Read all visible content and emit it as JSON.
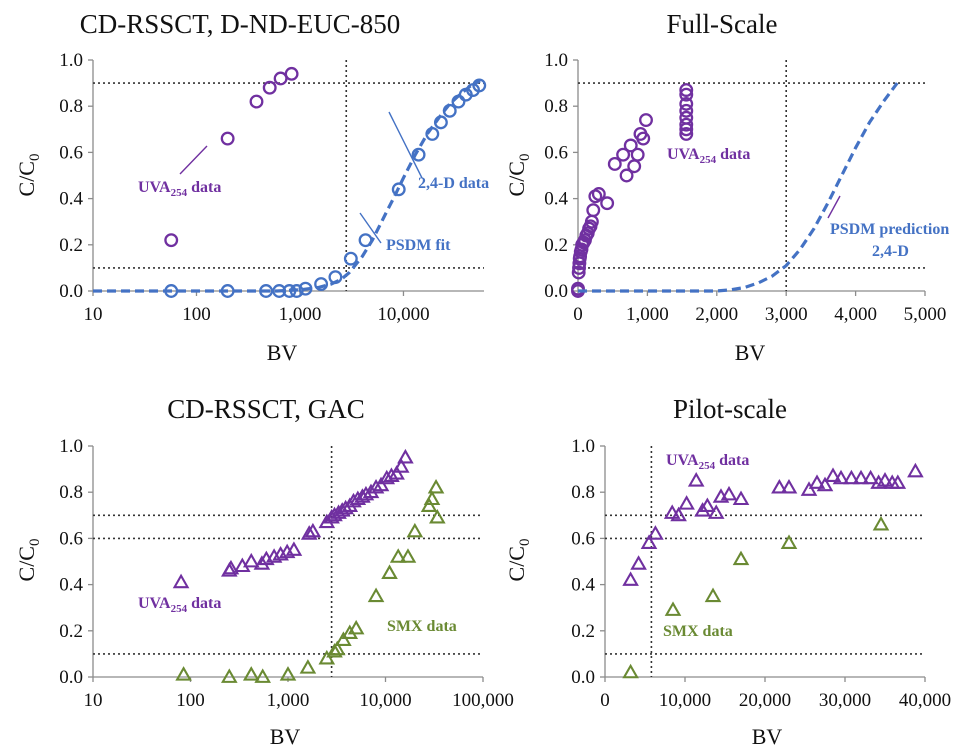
{
  "colors": {
    "purple": "#7030a0",
    "blue": "#4472c4",
    "green": "#6a8a33",
    "axis": "#8c8c8c",
    "text": "#111111"
  },
  "chart_data": [
    {
      "type": "scatter",
      "title": "CD-RSSCT, D-ND-EUC-850",
      "xlabel": "BV",
      "ylabel": "C/C",
      "ylabel_sub": "0",
      "xscale": "log",
      "xlim": [
        10,
        60000
      ],
      "ylim": [
        0,
        1.0
      ],
      "xticks": [
        10,
        100,
        1000,
        10000
      ],
      "xtick_labels": [
        "10",
        "100",
        "1,000",
        "10,000"
      ],
      "yticks": [
        0,
        0.2,
        0.4,
        0.6,
        0.8,
        1.0
      ],
      "ytick_labels": [
        "0.0",
        "0.2",
        "0.4",
        "0.6",
        "0.8",
        "1.0"
      ],
      "grid": false,
      "ref_lines": {
        "h": [
          0.1,
          0.9
        ],
        "v": [
          2800
        ]
      },
      "series": [
        {
          "marker": "circle",
          "color": "#7030a0",
          "x": [
            57,
            200,
            380,
            510,
            650,
            830
          ],
          "y": [
            0.22,
            0.66,
            0.82,
            0.88,
            0.92,
            0.94
          ]
        },
        {
          "marker": "circle",
          "color": "#4472c4",
          "x": [
            57,
            200,
            470,
            630,
            790,
            930,
            1130,
            1600,
            2200,
            3100,
            4300,
            9000,
            14000,
            19000,
            23000,
            28000,
            34000,
            40000,
            47000,
            54000
          ],
          "y": [
            0.0,
            0.0,
            0.0,
            0.0,
            0.0,
            0.0,
            0.01,
            0.03,
            0.06,
            0.14,
            0.22,
            0.44,
            0.59,
            0.68,
            0.73,
            0.78,
            0.82,
            0.85,
            0.87,
            0.89
          ]
        },
        {
          "style": "dash",
          "color": "#4472c4",
          "x": [
            10,
            200,
            600,
            1000,
            1500,
            2000,
            2500,
            3000,
            4000,
            5000,
            6000,
            7000,
            8000,
            10000,
            13000,
            17000,
            22000,
            28000,
            35000,
            45000,
            55000
          ],
          "y": [
            0.0,
            0.0,
            0.0,
            0.005,
            0.015,
            0.03,
            0.05,
            0.08,
            0.15,
            0.22,
            0.29,
            0.35,
            0.4,
            0.49,
            0.59,
            0.68,
            0.75,
            0.81,
            0.85,
            0.89,
            0.91
          ]
        }
      ],
      "annotations": [
        {
          "text": "UVA",
          "sub": "254",
          "tail": " data",
          "color": "#7030a0"
        },
        {
          "text": "2,4-D data",
          "color": "#4472c4"
        },
        {
          "text": "PSDM fit",
          "color": "#4472c4"
        }
      ]
    },
    {
      "type": "scatter",
      "title": "Full-Scale",
      "xlabel": "BV",
      "ylabel": "C/C",
      "ylabel_sub": "0",
      "xscale": "linear",
      "xlim": [
        0,
        5000
      ],
      "ylim": [
        0,
        1.0
      ],
      "xticks": [
        0,
        1000,
        2000,
        3000,
        4000,
        5000
      ],
      "xtick_labels": [
        "0",
        "1,000",
        "2,000",
        "3,000",
        "4,000",
        "5,000"
      ],
      "yticks": [
        0,
        0.2,
        0.4,
        0.6,
        0.8,
        1.0
      ],
      "ytick_labels": [
        "0.0",
        "0.2",
        "0.4",
        "0.6",
        "0.8",
        "1.0"
      ],
      "grid": false,
      "ref_lines": {
        "h": [
          0.1,
          0.9
        ],
        "v": [
          3000
        ]
      },
      "series": [
        {
          "marker": "circle",
          "color": "#7030a0",
          "x": [
            0,
            0,
            10,
            15,
            20,
            25,
            30,
            40,
            50,
            60,
            80,
            100,
            120,
            140,
            160,
            180,
            200,
            220,
            250,
            300,
            420,
            530,
            650,
            700,
            760,
            810,
            860,
            900,
            940,
            980,
            1560,
            1560,
            1560,
            1560,
            1560,
            1560,
            1560,
            1560
          ],
          "y": [
            0.0,
            0.01,
            0.08,
            0.1,
            0.12,
            0.14,
            0.15,
            0.17,
            0.18,
            0.2,
            0.21,
            0.22,
            0.24,
            0.25,
            0.27,
            0.28,
            0.3,
            0.35,
            0.41,
            0.42,
            0.38,
            0.55,
            0.59,
            0.5,
            0.63,
            0.54,
            0.59,
            0.68,
            0.66,
            0.74,
            0.68,
            0.7,
            0.72,
            0.75,
            0.78,
            0.81,
            0.85,
            0.87
          ]
        },
        {
          "style": "dash",
          "color": "#4472c4",
          "x": [
            0,
            1000,
            2000,
            2200,
            2400,
            2600,
            2800,
            3000,
            3200,
            3400,
            3600,
            3800,
            4000,
            4200,
            4400,
            4600
          ],
          "y": [
            0.0,
            0.0,
            0.0,
            0.005,
            0.015,
            0.035,
            0.065,
            0.11,
            0.18,
            0.27,
            0.38,
            0.5,
            0.62,
            0.73,
            0.82,
            0.9
          ]
        }
      ],
      "annotations": [
        {
          "text": "UVA",
          "sub": "254",
          "tail": " data",
          "color": "#7030a0"
        },
        {
          "text": "PSDM prediction",
          "color": "#4472c4"
        },
        {
          "text": "2,4-D",
          "color": "#4472c4"
        }
      ]
    },
    {
      "type": "scatter",
      "title": "CD-RSSCT, GAC",
      "xlabel": "BV",
      "ylabel": "C/C",
      "ylabel_sub": "0",
      "xscale": "log",
      "xlim": [
        10,
        100000
      ],
      "ylim": [
        0,
        1.0
      ],
      "xticks": [
        10,
        100,
        1000,
        10000,
        100000
      ],
      "xtick_labels": [
        "10",
        "100",
        "1,000",
        "10,000",
        "100,000"
      ],
      "yticks": [
        0,
        0.2,
        0.4,
        0.6,
        0.8,
        1.0
      ],
      "ytick_labels": [
        "0.0",
        "0.2",
        "0.4",
        "0.6",
        "0.8",
        "1.0"
      ],
      "grid": false,
      "ref_lines": {
        "h": [
          0.1,
          0.6,
          0.7
        ],
        "v": [
          2800
        ]
      },
      "series": [
        {
          "marker": "triangle",
          "color": "#7030a0",
          "x": [
            80,
            250,
            260,
            340,
            420,
            540,
            600,
            720,
            840,
            980,
            1150,
            1650,
            1800,
            2500,
            2800,
            3000,
            3300,
            3600,
            3900,
            4300,
            4700,
            5200,
            5800,
            6300,
            7100,
            8000,
            9000,
            10300,
            11500,
            13000,
            14500,
            16000
          ],
          "y": [
            0.41,
            0.46,
            0.47,
            0.48,
            0.5,
            0.49,
            0.51,
            0.52,
            0.53,
            0.54,
            0.55,
            0.62,
            0.63,
            0.67,
            0.69,
            0.7,
            0.71,
            0.72,
            0.73,
            0.74,
            0.76,
            0.77,
            0.78,
            0.79,
            0.8,
            0.82,
            0.83,
            0.86,
            0.87,
            0.88,
            0.91,
            0.95
          ]
        },
        {
          "marker": "triangle",
          "color": "#6a8a33",
          "x": [
            85,
            250,
            420,
            550,
            1000,
            1600,
            2500,
            3000,
            3200,
            3700,
            4300,
            5000,
            8000,
            11000,
            13500,
            17000,
            20000,
            28000,
            30000,
            33000,
            34000
          ],
          "y": [
            0.01,
            0.0,
            0.01,
            0.0,
            0.01,
            0.04,
            0.08,
            0.11,
            0.12,
            0.16,
            0.19,
            0.21,
            0.35,
            0.45,
            0.52,
            0.52,
            0.63,
            0.74,
            0.77,
            0.82,
            0.69
          ]
        }
      ],
      "annotations": [
        {
          "text": "UVA",
          "sub": "254",
          "tail": " data",
          "color": "#7030a0"
        },
        {
          "text": "SMX data",
          "color": "#6a8a33"
        }
      ]
    },
    {
      "type": "scatter",
      "title": "Pilot-scale",
      "xlabel": "BV",
      "ylabel": "C/C",
      "ylabel_sub": "0",
      "xscale": "linear",
      "xlim": [
        0,
        40000
      ],
      "ylim": [
        0,
        1.0
      ],
      "xticks": [
        0,
        10000,
        20000,
        30000,
        40000
      ],
      "xtick_labels": [
        "0",
        "10,000",
        "20,000",
        "30,000",
        "40,000"
      ],
      "yticks": [
        0,
        0.2,
        0.4,
        0.6,
        0.8,
        1.0
      ],
      "ytick_labels": [
        "0.0",
        "0.2",
        "0.4",
        "0.6",
        "0.8",
        "1.0"
      ],
      "grid": false,
      "ref_lines": {
        "h": [
          0.1,
          0.6,
          0.7
        ],
        "v": [
          5800
        ]
      },
      "series": [
        {
          "marker": "triangle",
          "color": "#7030a0",
          "x": [
            3200,
            4200,
            5500,
            6300,
            8400,
            9200,
            10200,
            11400,
            12200,
            12800,
            13900,
            14500,
            15500,
            17000,
            21800,
            23000,
            25500,
            26500,
            27500,
            28500,
            29500,
            30800,
            32000,
            33200,
            34200,
            35000,
            35900,
            36600,
            38800
          ],
          "y": [
            0.42,
            0.49,
            0.58,
            0.62,
            0.71,
            0.7,
            0.75,
            0.85,
            0.72,
            0.74,
            0.71,
            0.78,
            0.79,
            0.77,
            0.82,
            0.82,
            0.81,
            0.84,
            0.83,
            0.87,
            0.86,
            0.86,
            0.86,
            0.86,
            0.84,
            0.85,
            0.84,
            0.84,
            0.89
          ]
        },
        {
          "marker": "triangle",
          "color": "#6a8a33",
          "x": [
            3200,
            8500,
            13500,
            17000,
            23000,
            34500
          ],
          "y": [
            0.02,
            0.29,
            0.35,
            0.51,
            0.58,
            0.66
          ]
        }
      ],
      "annotations": [
        {
          "text": "UVA",
          "sub": "254",
          "tail": " data",
          "color": "#7030a0"
        },
        {
          "text": "SMX data",
          "color": "#6a8a33"
        }
      ]
    }
  ]
}
